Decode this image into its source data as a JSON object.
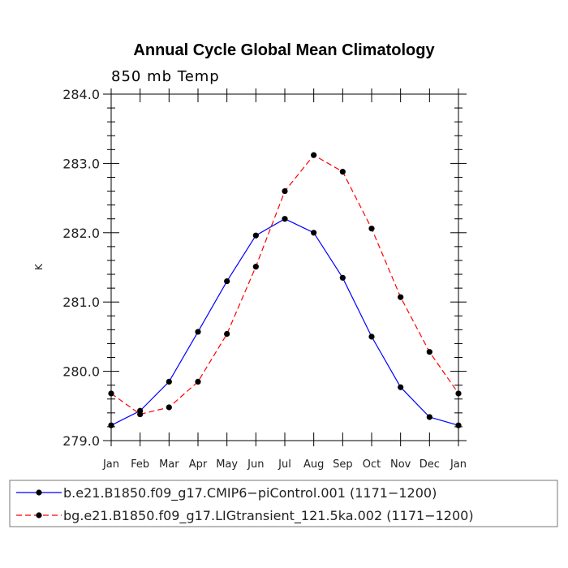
{
  "chart_data": {
    "type": "line",
    "title": "Annual Cycle Global Mean Climatology",
    "subtitle": "850 mb Temp",
    "xlabel": "",
    "ylabel": "K",
    "categories": [
      "Jan",
      "Feb",
      "Mar",
      "Apr",
      "May",
      "Jun",
      "Jul",
      "Aug",
      "Sep",
      "Oct",
      "Nov",
      "Dec",
      "Jan"
    ],
    "ylim": [
      279.0,
      284.0
    ],
    "yticks": [
      "279.0",
      "280.0",
      "281.0",
      "282.0",
      "283.0",
      "284.0"
    ],
    "grid": false,
    "legend_position": "bottom",
    "series": [
      {
        "name": "b.e21.B1850.f09_g17.CMIP6−piControl.001 (1171−1200)",
        "color": "#0000ff",
        "dash": "solid",
        "values": [
          279.22,
          279.43,
          279.85,
          280.57,
          281.3,
          281.96,
          282.2,
          282.0,
          281.35,
          280.5,
          279.77,
          279.34,
          279.22
        ]
      },
      {
        "name": "bg.e21.B1850.f09_g17.LIGtransient_121.5ka.002 (1171−1200)",
        "color": "#ff0000",
        "dash": "dashed",
        "values": [
          279.68,
          279.38,
          279.48,
          279.85,
          280.54,
          281.51,
          282.6,
          283.12,
          282.88,
          282.06,
          281.07,
          280.28,
          279.68
        ]
      }
    ]
  }
}
